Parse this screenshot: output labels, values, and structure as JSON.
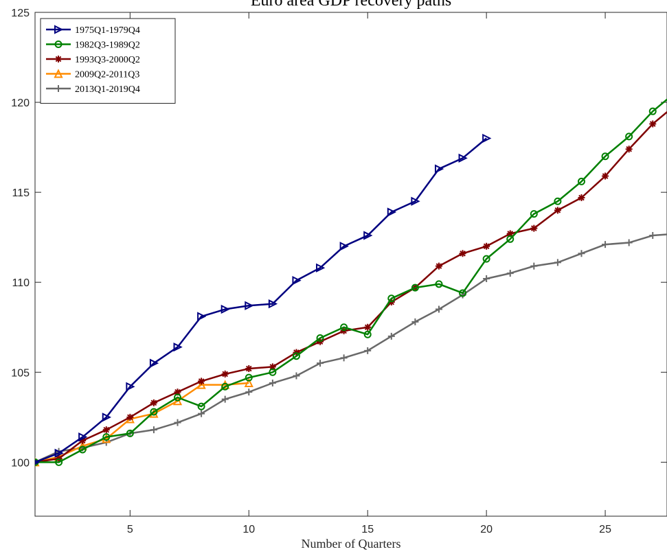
{
  "chart_data": {
    "type": "line",
    "title": "Euro area GDP recovery paths",
    "xlabel": "Number of Quarters",
    "ylabel": "",
    "xlim": [
      1,
      27.6
    ],
    "ylim": [
      97,
      125
    ],
    "xticks": [
      5,
      10,
      15,
      20,
      25
    ],
    "yticks": [
      100,
      105,
      110,
      115,
      120,
      125
    ],
    "grid": false,
    "legend_position": "top-left",
    "series": [
      {
        "name": "1975Q1-1979Q4",
        "color": "#000080",
        "marker": "triangle-right",
        "x": [
          1,
          2,
          3,
          4,
          5,
          6,
          7,
          8,
          9,
          10,
          11,
          12,
          13,
          14,
          15,
          16,
          17,
          18,
          19,
          20
        ],
        "y": [
          100,
          100.5,
          101.4,
          102.5,
          104.2,
          105.5,
          106.4,
          108.1,
          108.5,
          108.7,
          108.8,
          110.1,
          110.8,
          112.0,
          112.6,
          113.9,
          114.5,
          116.3,
          116.9,
          118.0
        ]
      },
      {
        "name": "1982Q3-1989Q2",
        "color": "#008000",
        "marker": "circle",
        "x": [
          1,
          2,
          3,
          4,
          5,
          6,
          7,
          8,
          9,
          10,
          11,
          12,
          13,
          14,
          15,
          16,
          17,
          18,
          19,
          20,
          21,
          22,
          23,
          24,
          25,
          26,
          27,
          28
        ],
        "y": [
          100,
          100.0,
          100.7,
          101.4,
          101.6,
          102.8,
          103.6,
          103.1,
          104.2,
          104.7,
          105.0,
          105.9,
          106.9,
          107.5,
          107.1,
          109.1,
          109.7,
          109.9,
          109.4,
          111.3,
          112.4,
          113.8,
          114.5,
          115.6,
          117.0,
          118.1,
          119.5,
          120.6
        ]
      },
      {
        "name": "1993Q3-2000Q2",
        "color": "#800000",
        "marker": "asterisk",
        "x": [
          1,
          2,
          3,
          4,
          5,
          6,
          7,
          8,
          9,
          10,
          11,
          12,
          13,
          14,
          15,
          16,
          17,
          18,
          19,
          20,
          21,
          22,
          23,
          24,
          25,
          26,
          27,
          28
        ],
        "y": [
          100,
          100.2,
          101.2,
          101.8,
          102.5,
          103.3,
          103.9,
          104.5,
          104.9,
          105.2,
          105.3,
          106.1,
          106.7,
          107.3,
          107.5,
          108.9,
          109.7,
          110.9,
          111.6,
          112.0,
          112.7,
          113.0,
          114.0,
          114.7,
          115.9,
          117.4,
          118.8,
          119.9
        ]
      },
      {
        "name": "2009Q2-2011Q3",
        "color": "#FF8C00",
        "marker": "triangle-up",
        "x": [
          1,
          2,
          3,
          4,
          5,
          6,
          7,
          8,
          9,
          10
        ],
        "y": [
          100,
          100.3,
          100.9,
          101.3,
          102.4,
          102.7,
          103.4,
          104.3,
          104.3,
          104.4
        ]
      },
      {
        "name": "2013Q1-2019Q4",
        "color": "#696969",
        "marker": "plus",
        "x": [
          1,
          2,
          3,
          4,
          5,
          6,
          7,
          8,
          9,
          10,
          11,
          12,
          13,
          14,
          15,
          16,
          17,
          18,
          19,
          20,
          21,
          22,
          23,
          24,
          25,
          26,
          27,
          28
        ],
        "y": [
          100,
          100.6,
          100.8,
          101.1,
          101.6,
          101.8,
          102.2,
          102.7,
          103.5,
          103.9,
          104.4,
          104.8,
          105.5,
          105.8,
          106.2,
          107.0,
          107.8,
          108.5,
          109.3,
          110.2,
          110.5,
          110.9,
          111.1,
          111.6,
          112.1,
          112.2,
          112.6,
          112.7
        ]
      }
    ]
  }
}
